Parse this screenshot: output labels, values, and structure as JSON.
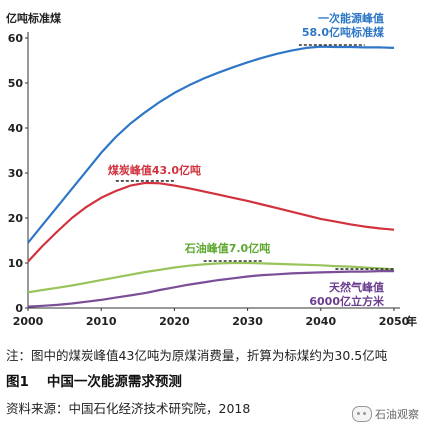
{
  "chart_data": {
    "type": "line",
    "ylabel": "亿吨标准煤",
    "xlabel": "年",
    "xlim": [
      2000,
      2050
    ],
    "ylim": [
      0,
      60
    ],
    "xticks": [
      2000,
      2010,
      2020,
      2030,
      2040,
      2050
    ],
    "yticks": [
      0,
      10,
      20,
      30,
      40,
      50,
      60
    ],
    "grid": false,
    "series": [
      {
        "color": "#2e77c6",
        "x": [
          2000,
          2002,
          2004,
          2006,
          2008,
          2010,
          2012,
          2014,
          2016,
          2018,
          2020,
          2022,
          2024,
          2026,
          2028,
          2030,
          2032,
          2034,
          2036,
          2038,
          2040,
          2042,
          2044,
          2046,
          2048,
          2050
        ],
        "y": [
          14.5,
          18.5,
          22.5,
          26.5,
          30.5,
          34.5,
          38,
          41,
          43.5,
          45.8,
          47.8,
          49.5,
          51,
          52.3,
          53.5,
          54.6,
          55.6,
          56.5,
          57.2,
          57.8,
          58.1,
          58,
          58,
          57.9,
          57.9,
          57.8
        ]
      },
      {
        "color": "#d2323e",
        "x": [
          2000,
          2002,
          2004,
          2006,
          2008,
          2010,
          2012,
          2014,
          2016,
          2018,
          2020,
          2022,
          2024,
          2026,
          2028,
          2030,
          2032,
          2034,
          2036,
          2038,
          2040,
          2042,
          2044,
          2046,
          2048,
          2050
        ],
        "y": [
          10.3,
          13.8,
          17,
          20,
          22.5,
          24.5,
          26,
          27.2,
          27.8,
          27.7,
          27.2,
          26.6,
          25.9,
          25.2,
          24.5,
          23.8,
          23,
          22.2,
          21.4,
          20.6,
          19.8,
          19.2,
          18.6,
          18.1,
          17.7,
          17.4
        ]
      },
      {
        "color": "#98c45a",
        "x": [
          2000,
          2002,
          2004,
          2006,
          2008,
          2010,
          2012,
          2014,
          2016,
          2018,
          2020,
          2022,
          2024,
          2026,
          2028,
          2030,
          2032,
          2034,
          2036,
          2038,
          2040,
          2042,
          2044,
          2046,
          2048,
          2050
        ],
        "y": [
          3.5,
          4,
          4.5,
          5,
          5.6,
          6.2,
          6.8,
          7.4,
          8,
          8.5,
          9,
          9.4,
          9.7,
          9.9,
          10,
          10,
          9.9,
          9.8,
          9.7,
          9.6,
          9.5,
          9.3,
          9.2,
          9.0,
          8.8,
          8.6
        ]
      },
      {
        "color": "#7b4f98",
        "x": [
          2000,
          2002,
          2004,
          2006,
          2008,
          2010,
          2012,
          2014,
          2016,
          2018,
          2020,
          2022,
          2024,
          2026,
          2028,
          2030,
          2032,
          2034,
          2036,
          2038,
          2040,
          2042,
          2044,
          2046,
          2048,
          2050
        ],
        "y": [
          0.3,
          0.5,
          0.7,
          1,
          1.4,
          1.8,
          2.3,
          2.8,
          3.3,
          4,
          4.6,
          5.2,
          5.7,
          6.2,
          6.6,
          7,
          7.3,
          7.5,
          7.7,
          7.8,
          7.9,
          8,
          8.1,
          8.1,
          8.2,
          8.2
        ]
      }
    ],
    "annotations": [
      {
        "lines": [
          "一次能源峰值",
          "58.0亿吨标准煤"
        ],
        "color": "#2e77c6",
        "peak_y": 58.0,
        "dash_x": [
          2037,
          2046
        ]
      },
      {
        "lines": [
          "煤炭峰值43.0亿吨"
        ],
        "color": "#d2323e",
        "peak_y": 27.8,
        "dash_x": [
          2012,
          2020
        ]
      },
      {
        "lines": [
          "石油峰值7.0亿吨"
        ],
        "color": "#5fa830",
        "peak_y": 10.0,
        "dash_x": [
          2024,
          2032
        ]
      },
      {
        "lines": [
          "天然气峰值",
          "6000亿立方米"
        ],
        "color": "#6a3d8f",
        "peak_y": 8.2,
        "dash_x": [
          2042,
          2050
        ]
      }
    ]
  },
  "note": "注：图中的煤炭峰值43亿吨为原煤消费量，折算为标煤约为30.5亿吨",
  "figure": {
    "number": "图1",
    "title": "中国一次能源需求预测"
  },
  "source": "资料来源：中国石化经济技术研究院，2018",
  "watermark": "石油观察"
}
